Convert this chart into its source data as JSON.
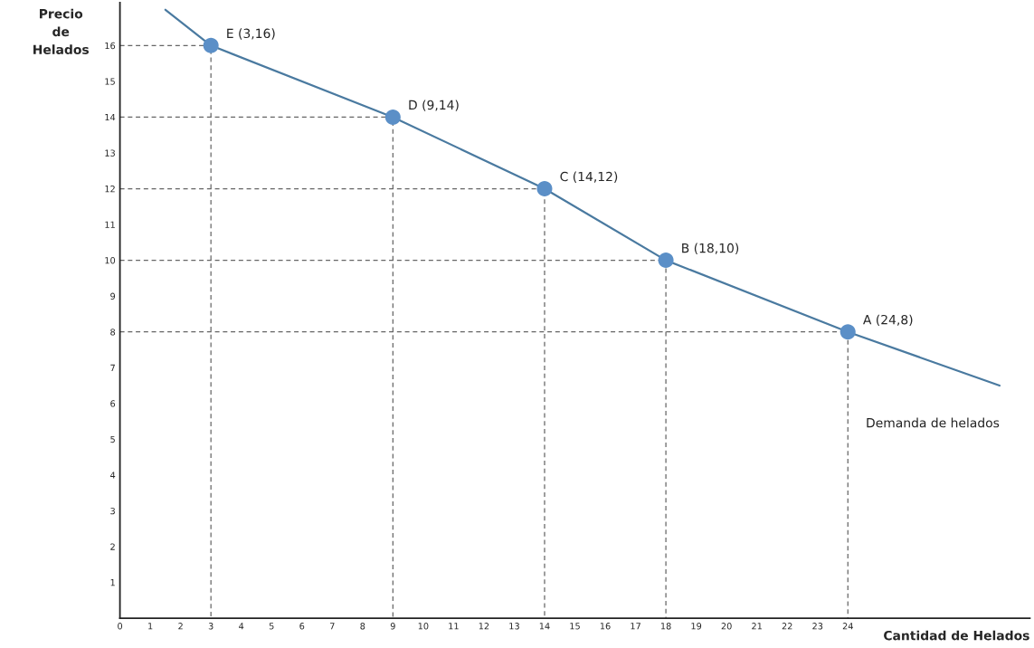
{
  "chart_data": {
    "type": "line",
    "xlabel": "Cantidad de Helados",
    "ylabel": "Precio\nde\nHelados",
    "xlim": [
      0,
      30
    ],
    "ylim": [
      0,
      17.2
    ],
    "xticks": [
      0,
      1,
      2,
      3,
      4,
      5,
      6,
      7,
      8,
      9,
      10,
      11,
      12,
      13,
      14,
      15,
      16,
      17,
      18,
      19,
      20,
      21,
      22,
      23,
      24
    ],
    "yticks": [
      1,
      2,
      3,
      4,
      5,
      6,
      7,
      8,
      9,
      10,
      11,
      12,
      13,
      14,
      15,
      16
    ],
    "grid": false,
    "legend": false,
    "series": [
      {
        "type": "line",
        "name": "Demanda de helados",
        "color": "#4a7aa0",
        "line_style": "solid",
        "marker": "none",
        "x": [
          1.5,
          3,
          9,
          14,
          18,
          24,
          29
        ],
        "values": [
          17,
          16,
          14,
          12,
          10,
          8,
          6.5
        ]
      },
      {
        "type": "scatter",
        "color": "#5b8fc7",
        "marker": "circle",
        "x": [
          3,
          9,
          14,
          18,
          24
        ],
        "values": [
          16,
          14,
          12,
          10,
          8
        ]
      },
      {
        "type": "line",
        "color": "#666666",
        "line_style": "dashed",
        "marker": "none",
        "x": [
          0,
          3,
          3
        ],
        "values": [
          16,
          16,
          0
        ]
      },
      {
        "type": "line",
        "color": "#666666",
        "line_style": "dashed",
        "marker": "none",
        "x": [
          0,
          9,
          9
        ],
        "values": [
          14,
          14,
          0
        ]
      },
      {
        "type": "line",
        "color": "#666666",
        "line_style": "dashed",
        "marker": "none",
        "x": [
          0,
          14,
          14
        ],
        "values": [
          12,
          12,
          0
        ]
      },
      {
        "type": "line",
        "color": "#666666",
        "line_style": "dashed",
        "marker": "none",
        "x": [
          0,
          18,
          18
        ],
        "values": [
          10,
          10,
          0
        ]
      },
      {
        "type": "line",
        "color": "#666666",
        "line_style": "dashed",
        "marker": "none",
        "x": [
          0,
          24,
          24
        ],
        "values": [
          8,
          8,
          0
        ]
      }
    ],
    "annotations": [
      {
        "text": "E (3,16)",
        "x": 3,
        "y": 16
      },
      {
        "text": "D (9,14)",
        "x": 9,
        "y": 14
      },
      {
        "text": "C (14,12)",
        "x": 14,
        "y": 12
      },
      {
        "text": "B (18,10)",
        "x": 18,
        "y": 10
      },
      {
        "text": "A (24,8)",
        "x": 24,
        "y": 8
      }
    ]
  }
}
